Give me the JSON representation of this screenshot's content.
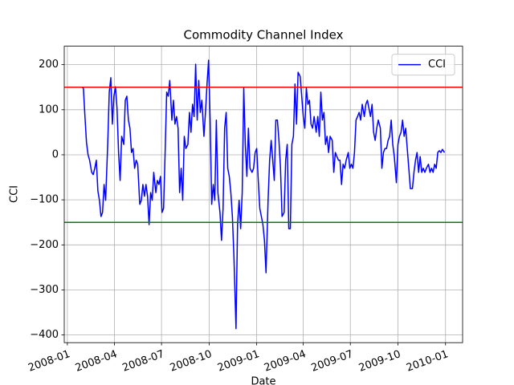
{
  "chart_data": {
    "type": "line",
    "title": "Commodity Channel Index",
    "xlabel": "Date",
    "ylabel": "CCI",
    "x": [
      28,
      31,
      34,
      37,
      40,
      43,
      47,
      50,
      53,
      56,
      59,
      62,
      65,
      68,
      71,
      74,
      78,
      81,
      84,
      87,
      90,
      93,
      96,
      99,
      102,
      105,
      109,
      112,
      115,
      118,
      121,
      124,
      127,
      130,
      133,
      136,
      140,
      143,
      146,
      149,
      152,
      155,
      158,
      161,
      164,
      167,
      171,
      174,
      177,
      180,
      183,
      186,
      189,
      192,
      195,
      198,
      202,
      205,
      208,
      211,
      214,
      217,
      220,
      223,
      226,
      229,
      233,
      236,
      239,
      242,
      245,
      248,
      251,
      254,
      257,
      260,
      264,
      267,
      270,
      273,
      276,
      279,
      282,
      285,
      288,
      291,
      295,
      298,
      301,
      304,
      307,
      310,
      313,
      316,
      319,
      322,
      326,
      329,
      332,
      335,
      338,
      341,
      344,
      347,
      350,
      353,
      357,
      360,
      363,
      366,
      369,
      372,
      375,
      378,
      381,
      384,
      388,
      391,
      394,
      397,
      400,
      403,
      406,
      409,
      412,
      415,
      419,
      422,
      425,
      428,
      431,
      434,
      437,
      440,
      443,
      446,
      450,
      453,
      456,
      459,
      462,
      465,
      468,
      471,
      474,
      477,
      481,
      484,
      487,
      490,
      493,
      496,
      499,
      502,
      505,
      508,
      512,
      515,
      518,
      521,
      524,
      527,
      530,
      533,
      536,
      539,
      543,
      546,
      549,
      552,
      555,
      558,
      561,
      564,
      567,
      570,
      574,
      577,
      580,
      583,
      586,
      589,
      592,
      595,
      598,
      601,
      605,
      608,
      611,
      614,
      617,
      620,
      623,
      626,
      629,
      632,
      636,
      639,
      642,
      645,
      648,
      651,
      654,
      657,
      660,
      663,
      667,
      670,
      673,
      676,
      679,
      682,
      685,
      688,
      691,
      694,
      698,
      701,
      704,
      707,
      710,
      713,
      716,
      719,
      722,
      725,
      729
    ],
    "series": [
      {
        "name": "CCI",
        "color": "#0000ff",
        "values": [
          150,
          148,
          85,
          27,
          0,
          -12,
          -39,
          -44,
          -30,
          -12,
          -80,
          -101,
          -137,
          -128,
          -66,
          -101,
          23,
          139,
          171,
          68,
          130,
          151,
          103,
          5,
          -57,
          41,
          23,
          121,
          130,
          77,
          59,
          5,
          14,
          -30,
          -12,
          -21,
          -110,
          -101,
          -66,
          -92,
          -66,
          -92,
          -155,
          -84,
          -101,
          -39,
          -84,
          -57,
          -66,
          -48,
          -128,
          -119,
          5,
          139,
          130,
          165,
          77,
          121,
          68,
          85,
          59,
          -84,
          -30,
          -101,
          41,
          14,
          23,
          94,
          50,
          112,
          85,
          201,
          77,
          165,
          94,
          121,
          41,
          94,
          157,
          210,
          77,
          -110,
          -66,
          -101,
          77,
          -84,
          -128,
          -190,
          -119,
          59,
          94,
          -30,
          -48,
          -84,
          -137,
          -226,
          -386,
          -155,
          -101,
          -164,
          -84,
          148,
          23,
          -48,
          59,
          -30,
          -39,
          -30,
          5,
          14,
          -57,
          -119,
          -137,
          -155,
          -190,
          -262,
          -101,
          -12,
          32,
          -12,
          -57,
          77,
          77,
          32,
          -30,
          -137,
          -128,
          -12,
          23,
          -164,
          -164,
          23,
          41,
          157,
          68,
          183,
          174,
          130,
          85,
          59,
          148,
          112,
          121,
          68,
          59,
          85,
          50,
          85,
          41,
          139,
          77,
          94,
          23,
          41,
          5,
          41,
          32,
          -39,
          5,
          -4,
          -12,
          -12,
          -66,
          -21,
          -30,
          -12,
          5,
          -30,
          -21,
          -30,
          5,
          77,
          85,
          94,
          77,
          112,
          85,
          112,
          121,
          103,
          85,
          112,
          50,
          32,
          59,
          77,
          59,
          -30,
          5,
          14,
          14,
          32,
          41,
          77,
          23,
          -4,
          -62,
          23,
          41,
          50,
          77,
          41,
          59,
          14,
          -30,
          -75,
          -75,
          -39,
          -12,
          5,
          -39,
          -4,
          -39,
          -30,
          -39,
          -30,
          -21,
          -39,
          -30,
          -39,
          -21,
          -30,
          5,
          9,
          5,
          12,
          5
        ]
      }
    ],
    "reference_lines": [
      {
        "value": 150,
        "color": "#ff0000"
      },
      {
        "value": -150,
        "color": "#008000"
      }
    ],
    "xlim": [
      -6,
      764
    ],
    "xticks": [
      {
        "value": 0,
        "label": "2008-01"
      },
      {
        "value": 91,
        "label": "2008-04"
      },
      {
        "value": 182,
        "label": "2008-07"
      },
      {
        "value": 274,
        "label": "2008-10"
      },
      {
        "value": 366,
        "label": "2009-01"
      },
      {
        "value": 456,
        "label": "2009-04"
      },
      {
        "value": 547,
        "label": "2009-07"
      },
      {
        "value": 639,
        "label": "2009-10"
      },
      {
        "value": 731,
        "label": "2010-01"
      }
    ],
    "ylim": [
      -417,
      241
    ],
    "yticks": [
      {
        "value": -400,
        "label": "−400"
      },
      {
        "value": -300,
        "label": "−300"
      },
      {
        "value": -200,
        "label": "−200"
      },
      {
        "value": -100,
        "label": "−100"
      },
      0,
      100,
      200
    ],
    "grid": true,
    "legend": "upper right"
  }
}
